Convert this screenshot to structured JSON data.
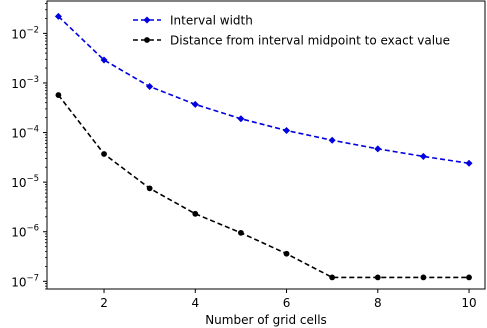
{
  "chart_data": {
    "type": "line",
    "xlabel": "Number of grid cells",
    "ylabel": "",
    "x_scale": "linear",
    "y_scale": "log",
    "xlim": [
      0.75,
      10.35
    ],
    "ylim": [
      7e-08,
      0.045
    ],
    "x_ticks": [
      2,
      4,
      6,
      8,
      10
    ],
    "x_tick_labels": [
      "2",
      "4",
      "6",
      "8",
      "10"
    ],
    "y_ticks": [
      1e-07,
      1e-06,
      1e-05,
      0.0001,
      0.001,
      0.01
    ],
    "y_tick_labels": [
      {
        "base": "10",
        "exp": "−7"
      },
      {
        "base": "10",
        "exp": "−6"
      },
      {
        "base": "10",
        "exp": "−5"
      },
      {
        "base": "10",
        "exp": "−4"
      },
      {
        "base": "10",
        "exp": "−3"
      },
      {
        "base": "10",
        "exp": "−2"
      }
    ],
    "grid": false,
    "legend_position": "top-center",
    "x": [
      1,
      2,
      3,
      4,
      5,
      6,
      7,
      8,
      9,
      10
    ],
    "series": [
      {
        "name": "Interval width",
        "color": "#0000e0",
        "line_style": "dashed",
        "marker": "diamond",
        "values": [
          0.022,
          0.0029,
          0.00085,
          0.00037,
          0.00019,
          0.00011,
          7e-05,
          4.7e-05,
          3.3e-05,
          2.4e-05
        ]
      },
      {
        "name": "Distance from interval midpoint to exact value",
        "color": "#000000",
        "line_style": "dashed",
        "marker": "circle",
        "values": [
          0.00057,
          3.7e-05,
          7.5e-06,
          2.3e-06,
          9.5e-07,
          3.6e-07,
          1.2e-07,
          1.2e-07,
          1.2e-07,
          1.2e-07
        ]
      }
    ]
  }
}
